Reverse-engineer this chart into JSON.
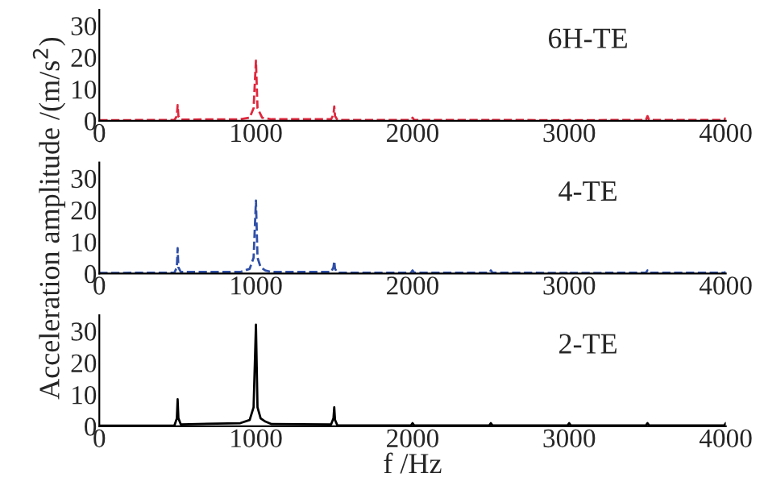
{
  "chart_data": [
    {
      "type": "line",
      "annotations": [
        "6H-TE"
      ],
      "xlim": [
        0,
        4000
      ],
      "xticks": [
        0,
        1000,
        2000,
        3000,
        4000
      ],
      "ylim": [
        0,
        35
      ],
      "yticks": [
        0,
        10,
        20,
        30
      ],
      "grid": false,
      "legend": false,
      "line_style": "dashed",
      "series": [
        {
          "color": "#e0263c",
          "x": [
            0,
            480,
            495,
            500,
            505,
            520,
            900,
            960,
            985,
            1000,
            1010,
            1040,
            1100,
            1480,
            1495,
            1500,
            1505,
            1520,
            1990,
            2000,
            2010,
            2490,
            2500,
            2510,
            2990,
            3000,
            3010,
            3490,
            3500,
            3510,
            3990,
            4000
          ],
          "values": [
            0.2,
            0.3,
            1.5,
            5,
            1.5,
            0.4,
            0.5,
            1,
            4,
            19,
            4,
            1,
            0.5,
            0.5,
            2,
            4.5,
            1.5,
            0.3,
            0.3,
            1,
            0.3,
            0.3,
            0.8,
            0.3,
            0.2,
            0.3,
            0.2,
            0.3,
            1.5,
            0.3,
            0.3,
            1
          ]
        }
      ]
    },
    {
      "type": "line",
      "annotations": [
        "4-TE"
      ],
      "ylabel": "Acceleration amplitude /(m/s$^{2}$)",
      "xlim": [
        0,
        4000
      ],
      "xticks": [
        0,
        1000,
        2000,
        3000,
        4000
      ],
      "ylim": [
        0,
        35
      ],
      "yticks": [
        0,
        10,
        20,
        30
      ],
      "grid": false,
      "legend": false,
      "line_style": "dashed",
      "series": [
        {
          "color": "#2f4fa8",
          "x": [
            0,
            480,
            495,
            500,
            505,
            520,
            900,
            960,
            985,
            1000,
            1010,
            1030,
            1060,
            1100,
            1480,
            1495,
            1500,
            1505,
            1520,
            1990,
            2000,
            2010,
            2490,
            2500,
            2510,
            2990,
            3000,
            3010,
            3490,
            3500,
            3510,
            3990,
            4000
          ],
          "values": [
            0.2,
            0.3,
            2,
            8,
            2,
            0.5,
            0.5,
            1.5,
            5,
            23,
            5,
            2,
            1,
            0.5,
            0.5,
            2,
            4,
            1.5,
            0.3,
            0.3,
            1,
            0.3,
            0.3,
            1,
            0.3,
            0.2,
            0.8,
            0.2,
            0.3,
            1,
            0.3,
            0.3,
            0.5
          ]
        }
      ]
    },
    {
      "type": "line",
      "annotations": [
        "2-TE"
      ],
      "xlabel": "f /Hz",
      "xlim": [
        0,
        4000
      ],
      "xticks": [
        0,
        1000,
        2000,
        3000,
        4000
      ],
      "ylim": [
        0,
        35
      ],
      "yticks": [
        0,
        10,
        20,
        30
      ],
      "grid": false,
      "legend": false,
      "line_style": "solid",
      "series": [
        {
          "color": "#000000",
          "x": [
            0,
            480,
            495,
            500,
            505,
            520,
            900,
            960,
            985,
            1000,
            1010,
            1030,
            1060,
            1100,
            1480,
            1495,
            1500,
            1505,
            1520,
            1990,
            2000,
            2010,
            2490,
            2500,
            2510,
            2990,
            3000,
            3010,
            3490,
            3500,
            3510,
            3990,
            4000
          ],
          "values": [
            0.2,
            0.3,
            2.5,
            8.5,
            2.5,
            0.6,
            1,
            2,
            6,
            32,
            6,
            2.5,
            1.5,
            0.7,
            0.6,
            2.5,
            6,
            2,
            0.3,
            0.3,
            1,
            0.3,
            0.3,
            1,
            0.3,
            0.3,
            1,
            0.3,
            0.3,
            1,
            0.3,
            0.3,
            1
          ]
        }
      ]
    }
  ]
}
